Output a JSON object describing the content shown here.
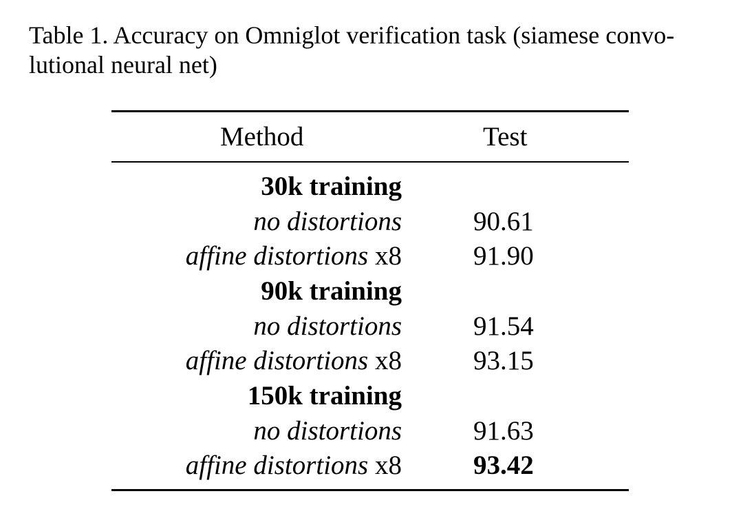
{
  "caption": {
    "line1": "Table 1. Accuracy on Omniglot verification task (siamese convo-",
    "line2": "lutional neural net)"
  },
  "table": {
    "headers": {
      "method": "Method",
      "test": "Test"
    },
    "rows": [
      {
        "type": "group",
        "method": "30k training",
        "test": ""
      },
      {
        "type": "row",
        "method_italic": "no distortions",
        "method_suffix": "",
        "test": "90.61",
        "test_bold": false
      },
      {
        "type": "row",
        "method_italic": "affine distortions",
        "method_suffix": " x8",
        "test": "91.90",
        "test_bold": false
      },
      {
        "type": "group",
        "method": "90k training",
        "test": ""
      },
      {
        "type": "row",
        "method_italic": "no distortions",
        "method_suffix": "",
        "test": "91.54",
        "test_bold": false
      },
      {
        "type": "row",
        "method_italic": "affine distortions",
        "method_suffix": " x8",
        "test": "93.15",
        "test_bold": false
      },
      {
        "type": "group",
        "method": "150k training",
        "test": ""
      },
      {
        "type": "row",
        "method_italic": "no distortions",
        "method_suffix": "",
        "test": "91.63",
        "test_bold": false
      },
      {
        "type": "row",
        "method_italic": "affine distortions",
        "method_suffix": " x8",
        "test": "93.42",
        "test_bold": true
      }
    ]
  }
}
